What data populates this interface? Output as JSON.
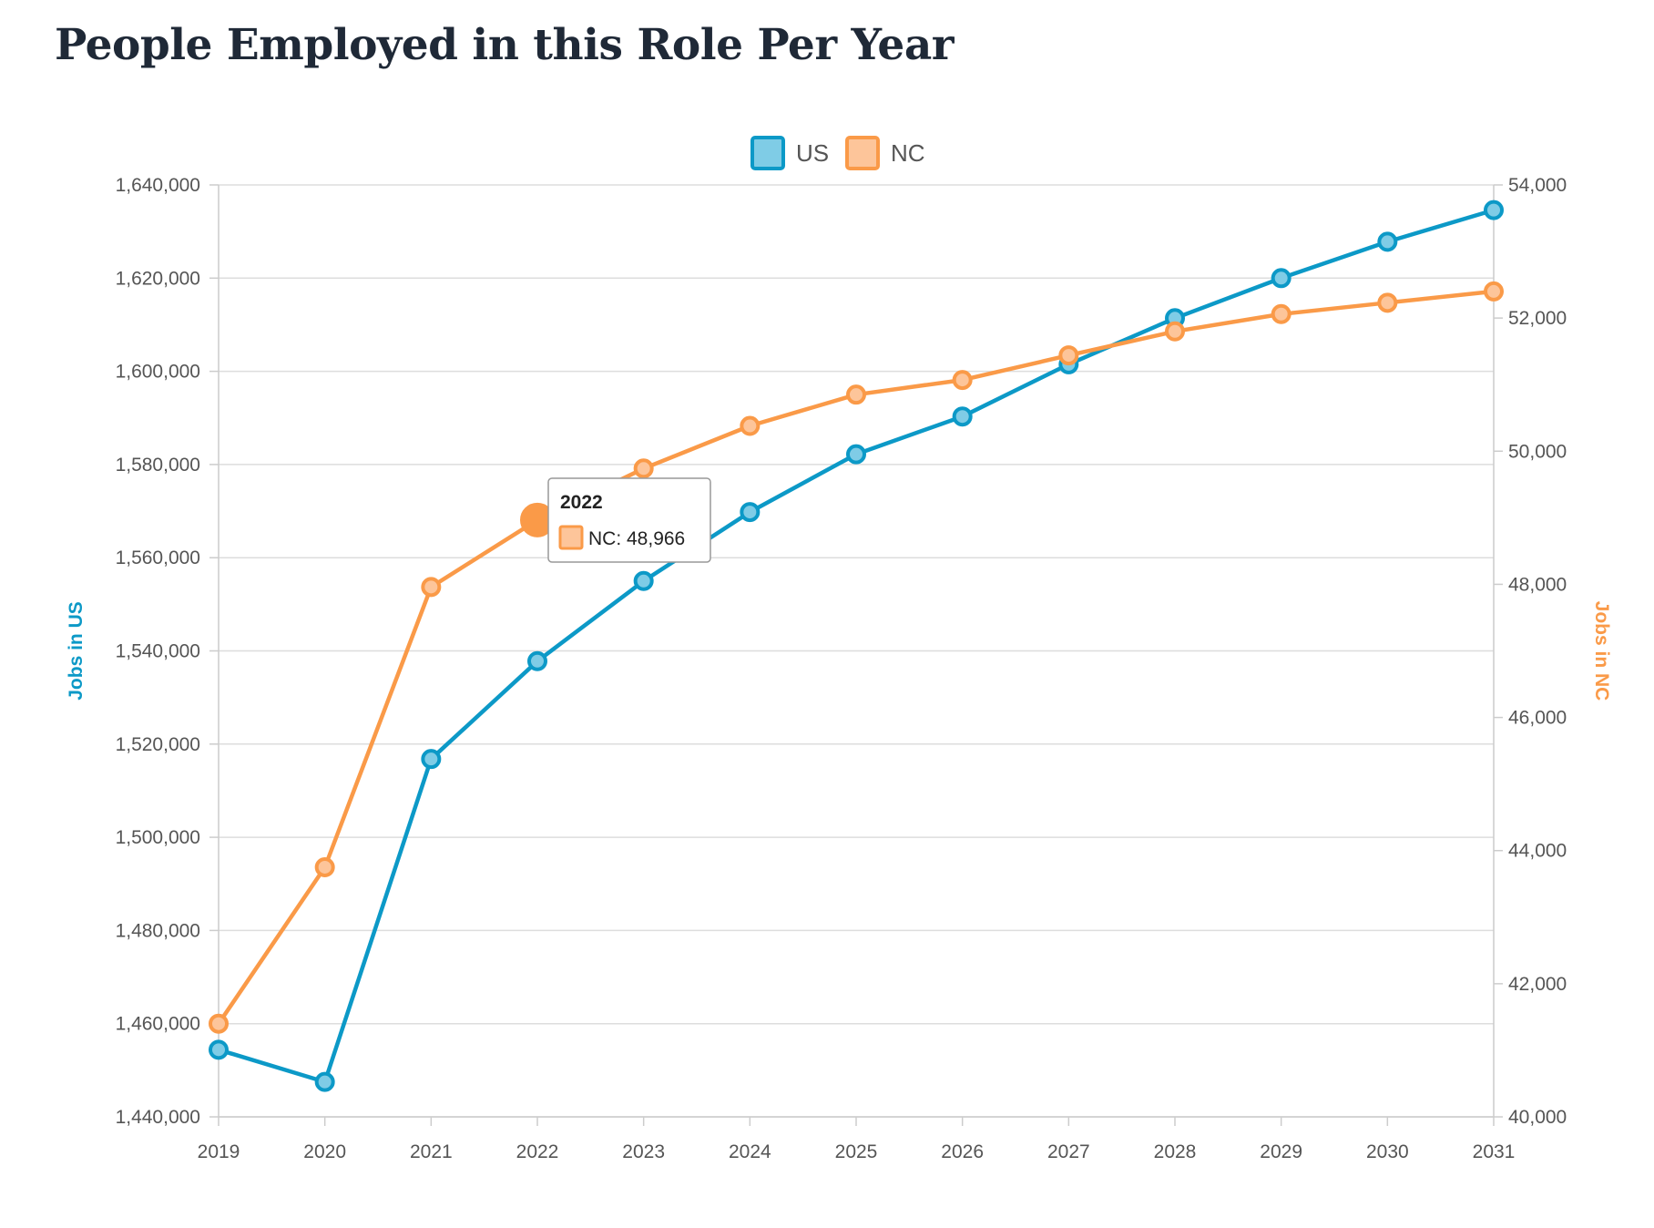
{
  "page": {
    "title": "People Employed in this Role Per Year"
  },
  "colors": {
    "us": "#0c99c7",
    "us_fill": "#7fcce6",
    "nc": "#fa9a48",
    "nc_fill": "#fdc59a",
    "grid": "#dddddd",
    "tick_text": "#555555"
  },
  "chart_data": {
    "type": "line",
    "categories": [
      "2019",
      "2020",
      "2021",
      "2022",
      "2023",
      "2024",
      "2025",
      "2026",
      "2027",
      "2028",
      "2029",
      "2030",
      "2031"
    ],
    "series": [
      {
        "key": "us",
        "name": "US",
        "axis": "left",
        "values": [
          1454400,
          1447500,
          1516800,
          1537800,
          1555000,
          1569800,
          1582200,
          1590300,
          1601500,
          1611400,
          1620000,
          1627800,
          1634600
        ]
      },
      {
        "key": "nc",
        "name": "NC",
        "axis": "right",
        "values": [
          41400,
          43750,
          47960,
          48966,
          49740,
          50380,
          50850,
          51070,
          51440,
          51800,
          52060,
          52230,
          52400
        ]
      }
    ],
    "y_left": {
      "label": "Jobs in US",
      "ylim": [
        1440000,
        1640000
      ],
      "ticks": [
        "1,440,000",
        "1,460,000",
        "1,480,000",
        "1,500,000",
        "1,520,000",
        "1,540,000",
        "1,560,000",
        "1,580,000",
        "1,600,000",
        "1,620,000",
        "1,640,000"
      ]
    },
    "y_right": {
      "label": "Jobs in NC",
      "ylim": [
        40000,
        54000
      ],
      "ticks": [
        "40,000",
        "42,000",
        "44,000",
        "46,000",
        "48,000",
        "50,000",
        "52,000",
        "54,000"
      ]
    },
    "legend": {
      "position": "top-center",
      "entries": [
        "US",
        "NC"
      ]
    },
    "grid": true,
    "tooltip": {
      "title": "2022",
      "series": "NC",
      "text": "NC: 48,966",
      "category_index": 3
    }
  }
}
